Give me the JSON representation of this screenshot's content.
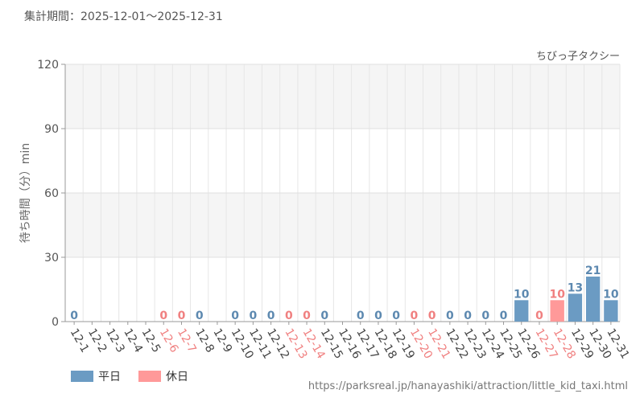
{
  "period_label": "集計期間：2025-12-01〜2025-12-31",
  "source_url": "https://parksreal.jp/hanayashiki/attraction/little_kid_taxi.html",
  "colors": {
    "weekday": "#6b9bc3",
    "holiday": "#ff9999",
    "weekday_label": "#5d89b0",
    "holiday_label": "#f08080"
  },
  "chart_data": {
    "type": "bar",
    "title": "ちびっ子タクシー",
    "ylabel": "待ち時間（分）min",
    "ylim": [
      0,
      120
    ],
    "yticks": [
      0,
      30,
      60,
      90,
      120
    ],
    "grid": true,
    "legend_position": "bottom-left",
    "categories": [
      "12-1",
      "12-2",
      "12-3",
      "12-4",
      "12-5",
      "12-6",
      "12-7",
      "12-8",
      "12-9",
      "12-10",
      "12-11",
      "12-12",
      "12-13",
      "12-14",
      "12-15",
      "12-16",
      "12-17",
      "12-18",
      "12-19",
      "12-20",
      "12-21",
      "12-22",
      "12-23",
      "12-24",
      "12-25",
      "12-26",
      "12-27",
      "12-28",
      "12-29",
      "12-30",
      "12-31"
    ],
    "values": [
      0,
      null,
      null,
      null,
      null,
      0,
      0,
      0,
      null,
      0,
      0,
      0,
      0,
      0,
      0,
      null,
      0,
      0,
      0,
      0,
      0,
      0,
      0,
      0,
      0,
      10,
      0,
      10,
      13,
      21,
      10
    ],
    "day_type": [
      "weekday",
      "weekday",
      "weekday",
      "weekday",
      "weekday",
      "holiday",
      "holiday",
      "weekday",
      "weekday",
      "weekday",
      "weekday",
      "weekday",
      "holiday",
      "holiday",
      "weekday",
      "weekday",
      "weekday",
      "weekday",
      "weekday",
      "holiday",
      "holiday",
      "weekday",
      "weekday",
      "weekday",
      "weekday",
      "weekday",
      "holiday",
      "holiday",
      "weekday",
      "weekday",
      "weekday"
    ],
    "series": [
      {
        "name": "平日",
        "key": "weekday"
      },
      {
        "name": "休日",
        "key": "holiday"
      }
    ]
  }
}
